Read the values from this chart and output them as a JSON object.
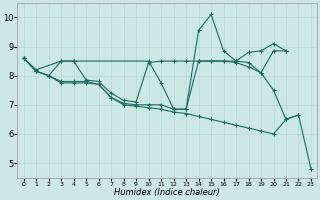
{
  "xlabel": "Humidex (Indice chaleur)",
  "background_color": "#cce8e4",
  "grid_color": "#b8d8d4",
  "line_color": "#1a6b60",
  "xlim": [
    -0.5,
    23.5
  ],
  "ylim": [
    4.5,
    10.5
  ],
  "yticks": [
    5,
    6,
    7,
    8,
    9,
    10
  ],
  "xticks": [
    0,
    1,
    2,
    3,
    4,
    5,
    6,
    7,
    8,
    9,
    10,
    11,
    12,
    13,
    14,
    15,
    16,
    17,
    18,
    19,
    20,
    21,
    22,
    23
  ],
  "lines": [
    {
      "x": [
        0,
        1,
        3,
        4,
        10,
        11,
        12,
        13,
        14,
        15,
        16,
        17,
        18,
        19,
        20,
        21
      ],
      "y": [
        8.6,
        8.2,
        8.5,
        8.5,
        8.5,
        7.75,
        6.85,
        6.85,
        9.55,
        10.1,
        8.85,
        8.5,
        8.8,
        8.85,
        9.1,
        8.85
      ]
    },
    {
      "x": [
        0,
        1,
        2,
        3,
        4,
        5,
        6,
        7,
        8,
        9,
        10,
        11,
        12,
        13,
        14,
        15,
        16,
        17,
        18,
        19,
        20,
        21
      ],
      "y": [
        8.6,
        8.15,
        8.0,
        8.5,
        8.5,
        7.85,
        7.8,
        7.4,
        7.15,
        7.1,
        8.45,
        8.5,
        8.5,
        8.5,
        8.5,
        8.5,
        8.5,
        8.45,
        8.3,
        8.1,
        8.85,
        8.85
      ]
    },
    {
      "x": [
        0,
        1,
        2,
        3,
        4,
        5,
        6,
        7,
        8,
        9,
        10,
        11,
        12,
        13,
        14,
        15,
        16,
        17,
        18,
        19,
        20,
        21,
        22
      ],
      "y": [
        8.6,
        8.15,
        8.0,
        7.8,
        7.8,
        7.8,
        7.7,
        7.25,
        7.05,
        7.0,
        7.0,
        7.0,
        6.85,
        6.85,
        8.5,
        8.5,
        8.5,
        8.5,
        8.45,
        8.1,
        7.5,
        6.5,
        6.65
      ]
    },
    {
      "x": [
        0,
        1,
        2,
        3,
        4,
        5,
        6,
        7,
        8,
        9,
        10,
        11,
        12,
        13,
        14,
        15,
        16,
        17,
        18,
        19,
        20,
        21,
        22,
        23
      ],
      "y": [
        8.6,
        8.15,
        8.0,
        7.75,
        7.75,
        7.75,
        7.7,
        7.25,
        7.0,
        6.95,
        6.9,
        6.85,
        6.75,
        6.7,
        6.6,
        6.5,
        6.4,
        6.3,
        6.2,
        6.1,
        6.0,
        6.5,
        6.65,
        4.8
      ]
    }
  ]
}
